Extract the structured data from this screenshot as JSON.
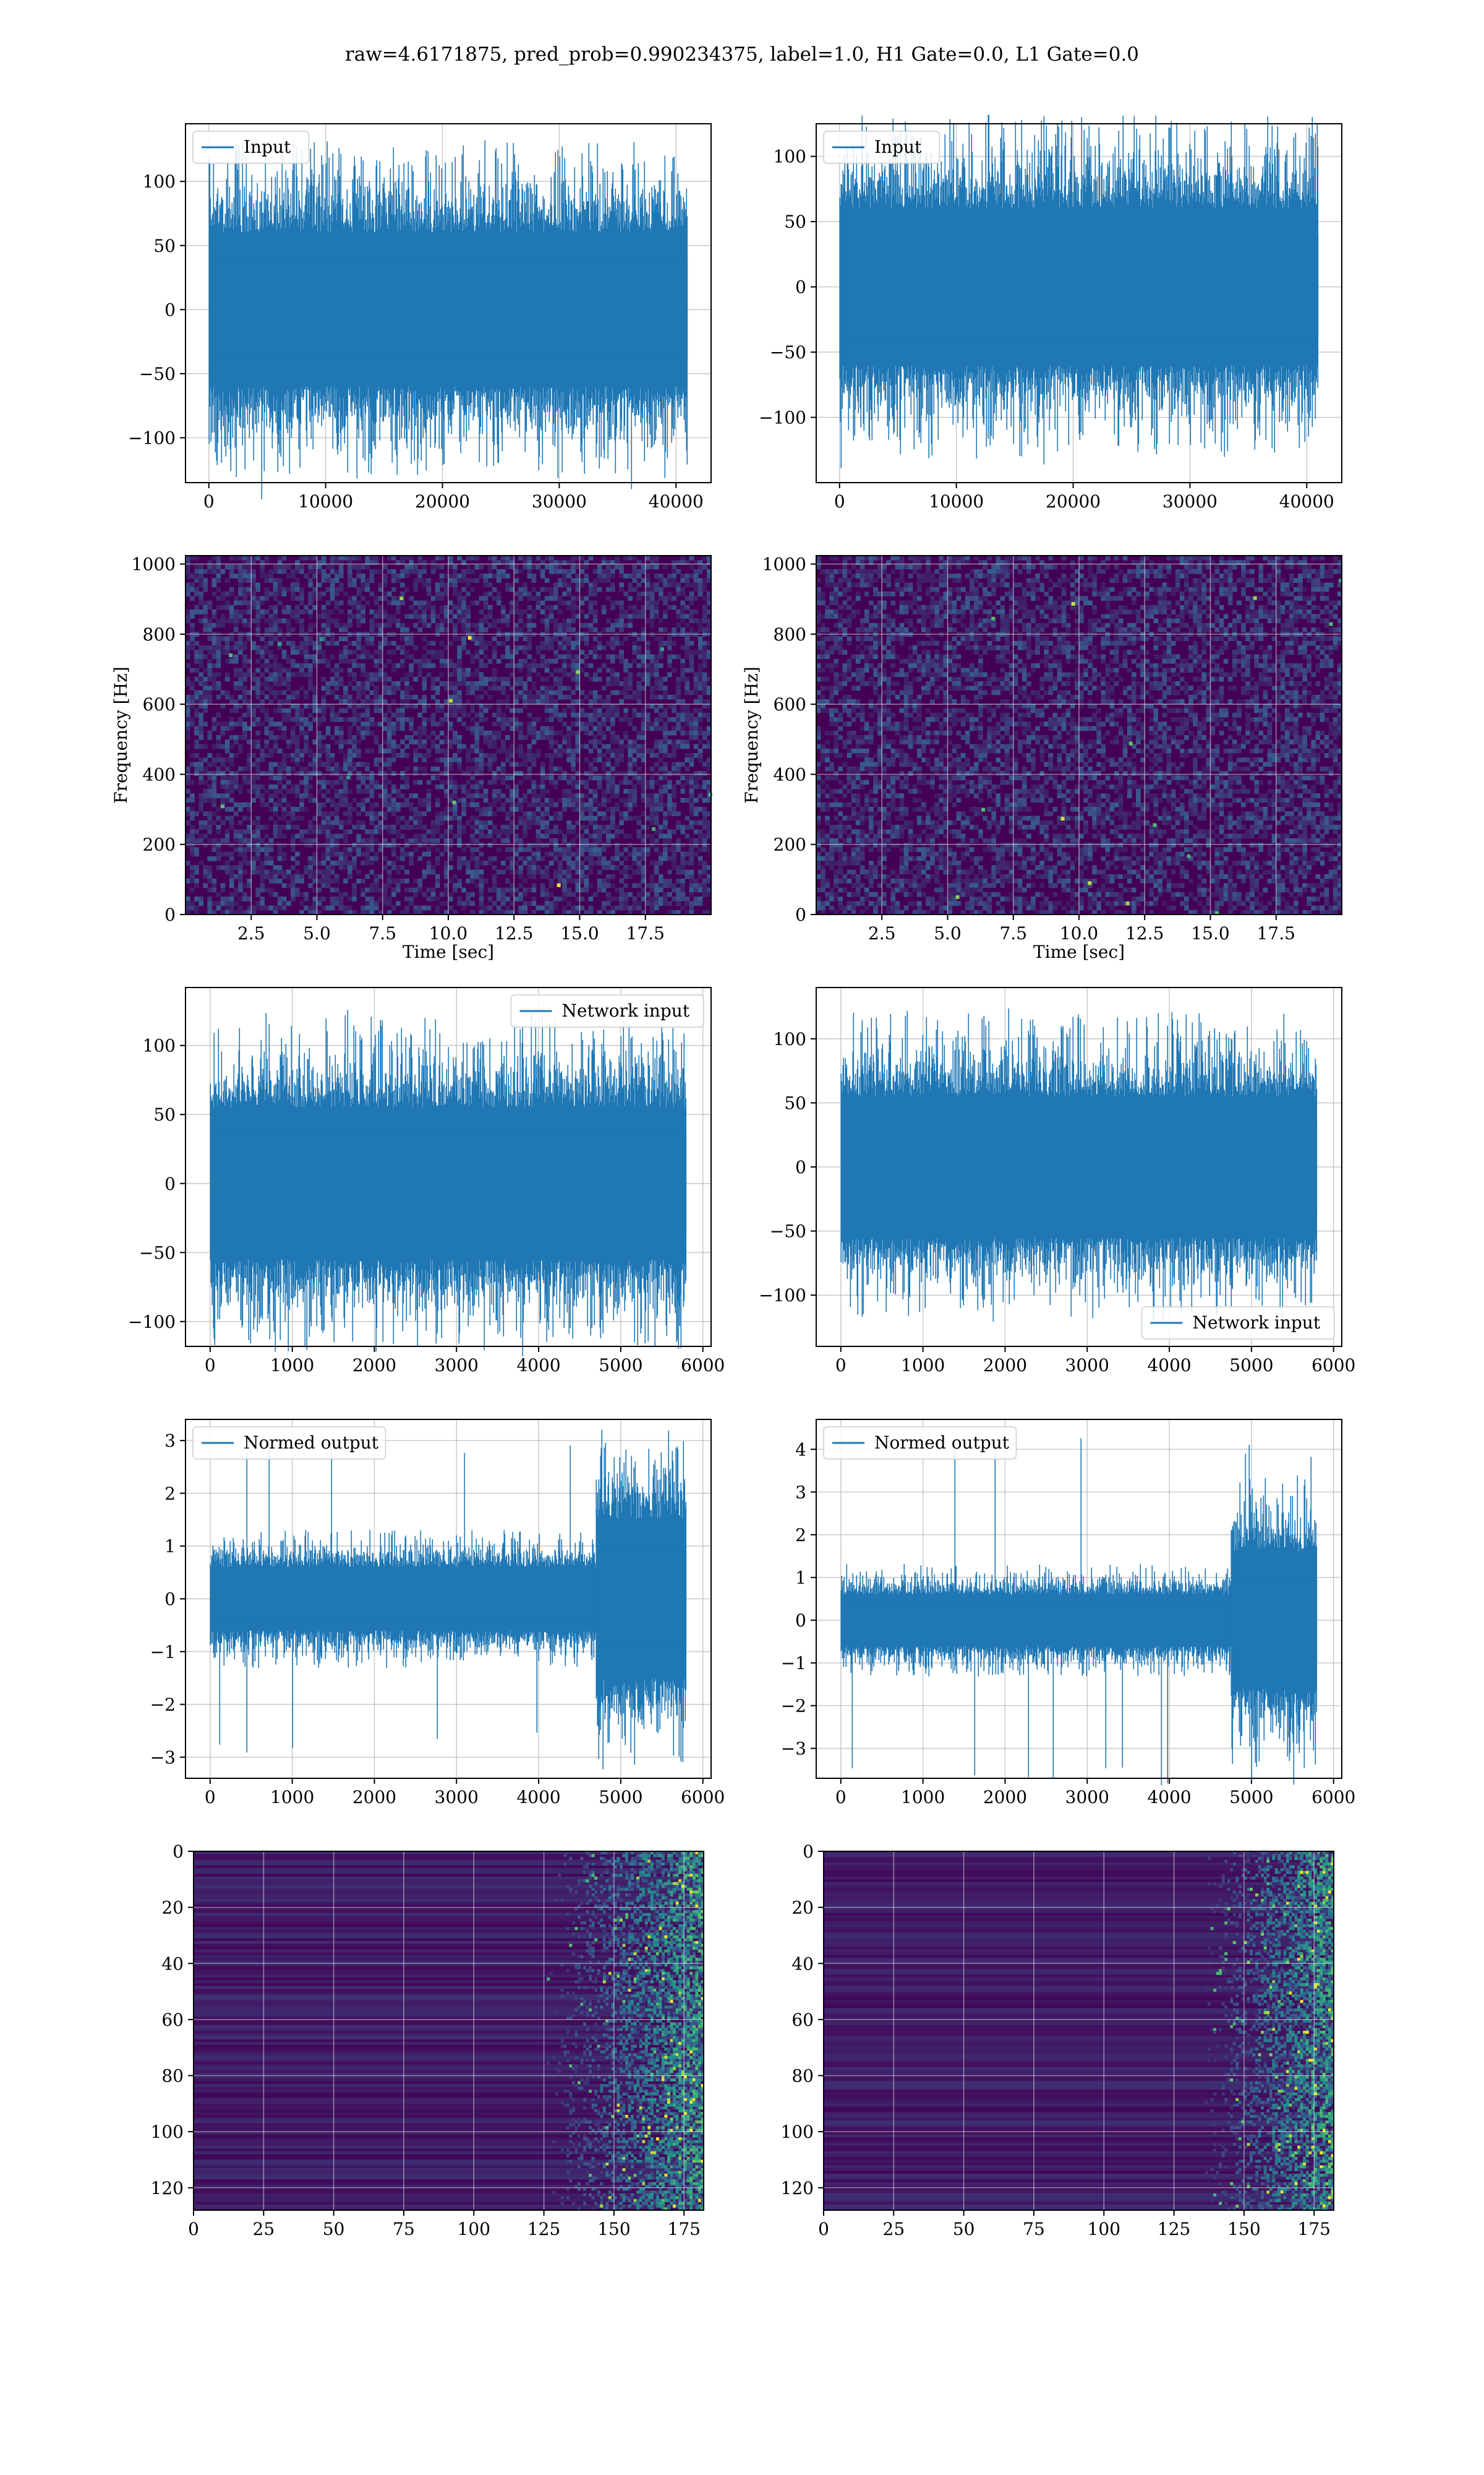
{
  "page": {
    "title": "raw=4.6171875, pred_prob=0.990234375, label=1.0, H1 Gate=0.0, L1 Gate=0.0"
  },
  "colors": {
    "line": "#1f77b4",
    "grid": "#b0b0b0",
    "viridis_low": "#440154",
    "viridis_mid": "#21918c",
    "viridis_high": "#fde725"
  },
  "chart_data": [
    {
      "id": "input-h1",
      "type": "line",
      "series": [
        {
          "name": "Input",
          "n_points": 41000,
          "envelope": 60,
          "peak": 135
        }
      ],
      "xlim": [
        -2000,
        43000
      ],
      "ylim": [
        -135,
        145
      ],
      "xticks": [
        0,
        10000,
        20000,
        30000,
        40000
      ],
      "yticks": [
        -100,
        -50,
        0,
        50,
        100
      ],
      "xlabel": "",
      "ylabel": "",
      "legend": "top-left",
      "grid": true
    },
    {
      "id": "input-l1",
      "type": "line",
      "series": [
        {
          "name": "Input",
          "n_points": 41000,
          "envelope": 60,
          "peak": 125
        }
      ],
      "xlim": [
        -2000,
        43000
      ],
      "ylim": [
        -150,
        125
      ],
      "xticks": [
        0,
        10000,
        20000,
        30000,
        40000
      ],
      "yticks": [
        -100,
        -50,
        0,
        50,
        100
      ],
      "xlabel": "",
      "ylabel": "",
      "legend": "top-left",
      "grid": true
    },
    {
      "id": "spec-h1",
      "type": "heatmap",
      "colormap": "viridis",
      "xlim": [
        0,
        20
      ],
      "ylim": [
        0,
        1024
      ],
      "xticks": [
        2.5,
        5.0,
        7.5,
        10.0,
        12.5,
        15.0,
        17.5
      ],
      "yticks": [
        0,
        200,
        400,
        600,
        800,
        1000
      ],
      "xlabel": "Time [sec]",
      "ylabel": "Frequency [Hz]",
      "grid": true
    },
    {
      "id": "spec-l1",
      "type": "heatmap",
      "colormap": "viridis",
      "xlim": [
        0,
        20
      ],
      "ylim": [
        0,
        1024
      ],
      "xticks": [
        2.5,
        5.0,
        7.5,
        10.0,
        12.5,
        15.0,
        17.5
      ],
      "yticks": [
        0,
        200,
        400,
        600,
        800,
        1000
      ],
      "xlabel": "Time [sec]",
      "ylabel": "Frequency [Hz]",
      "grid": true
    },
    {
      "id": "net-h1",
      "type": "line",
      "series": [
        {
          "name": "Network input",
          "n_points": 5800,
          "envelope": 55,
          "peak": 130
        }
      ],
      "xlim": [
        -300,
        6100
      ],
      "ylim": [
        -118,
        142
      ],
      "xticks": [
        0,
        1000,
        2000,
        3000,
        4000,
        5000,
        6000
      ],
      "yticks": [
        -100,
        -50,
        0,
        50,
        100
      ],
      "xlabel": "",
      "ylabel": "",
      "legend": "top-right",
      "grid": true
    },
    {
      "id": "net-l1",
      "type": "line",
      "series": [
        {
          "name": "Network input",
          "n_points": 5800,
          "envelope": 55,
          "peak": 125
        }
      ],
      "xlim": [
        -300,
        6100
      ],
      "ylim": [
        -140,
        140
      ],
      "xticks": [
        0,
        1000,
        2000,
        3000,
        4000,
        5000,
        6000
      ],
      "yticks": [
        -100,
        -50,
        0,
        50,
        100
      ],
      "xlabel": "",
      "ylabel": "",
      "legend": "bottom-right",
      "grid": true
    },
    {
      "id": "norm-h1",
      "type": "line",
      "series": [
        {
          "name": "Normed output",
          "n_points": 5800,
          "envelope": 0.6,
          "peak": 3.1,
          "burst_start": 4700,
          "burst_envelope": 1.5
        }
      ],
      "xlim": [
        -300,
        6100
      ],
      "ylim": [
        -3.4,
        3.4
      ],
      "xticks": [
        0,
        1000,
        2000,
        3000,
        4000,
        5000,
        6000
      ],
      "yticks": [
        -3,
        -2,
        -1,
        0,
        1,
        2,
        3
      ],
      "xlabel": "",
      "ylabel": "",
      "legend": "top-left",
      "grid": true
    },
    {
      "id": "norm-l1",
      "type": "line",
      "series": [
        {
          "name": "Normed output",
          "n_points": 5800,
          "envelope": 0.6,
          "peak": 4.3,
          "burst_start": 4750,
          "burst_envelope": 1.6
        }
      ],
      "xlim": [
        -300,
        6100
      ],
      "ylim": [
        -3.7,
        4.7
      ],
      "xticks": [
        0,
        1000,
        2000,
        3000,
        4000,
        5000,
        6000
      ],
      "yticks": [
        -3,
        -2,
        -1,
        0,
        1,
        2,
        3,
        4
      ],
      "xlabel": "",
      "ylabel": "",
      "legend": "top-left",
      "grid": true
    },
    {
      "id": "feat-h1",
      "type": "heatmap",
      "colormap": "viridis",
      "rows": 128,
      "cols": 182,
      "activity_from_col": 125,
      "xlim": [
        0,
        182
      ],
      "ylim": [
        0,
        128
      ],
      "xticks": [
        0,
        25,
        50,
        75,
        100,
        125,
        150,
        175
      ],
      "yticks": [
        0,
        20,
        40,
        60,
        80,
        100,
        120
      ],
      "xlabel": "",
      "ylabel": "",
      "grid": true
    },
    {
      "id": "feat-l1",
      "type": "heatmap",
      "colormap": "viridis",
      "rows": 128,
      "cols": 182,
      "activity_from_col": 135,
      "xlim": [
        0,
        182
      ],
      "ylim": [
        0,
        128
      ],
      "xticks": [
        0,
        25,
        50,
        75,
        100,
        125,
        150,
        175
      ],
      "yticks": [
        0,
        20,
        40,
        60,
        80,
        100,
        120
      ],
      "xlabel": "",
      "ylabel": "",
      "grid": true
    }
  ]
}
